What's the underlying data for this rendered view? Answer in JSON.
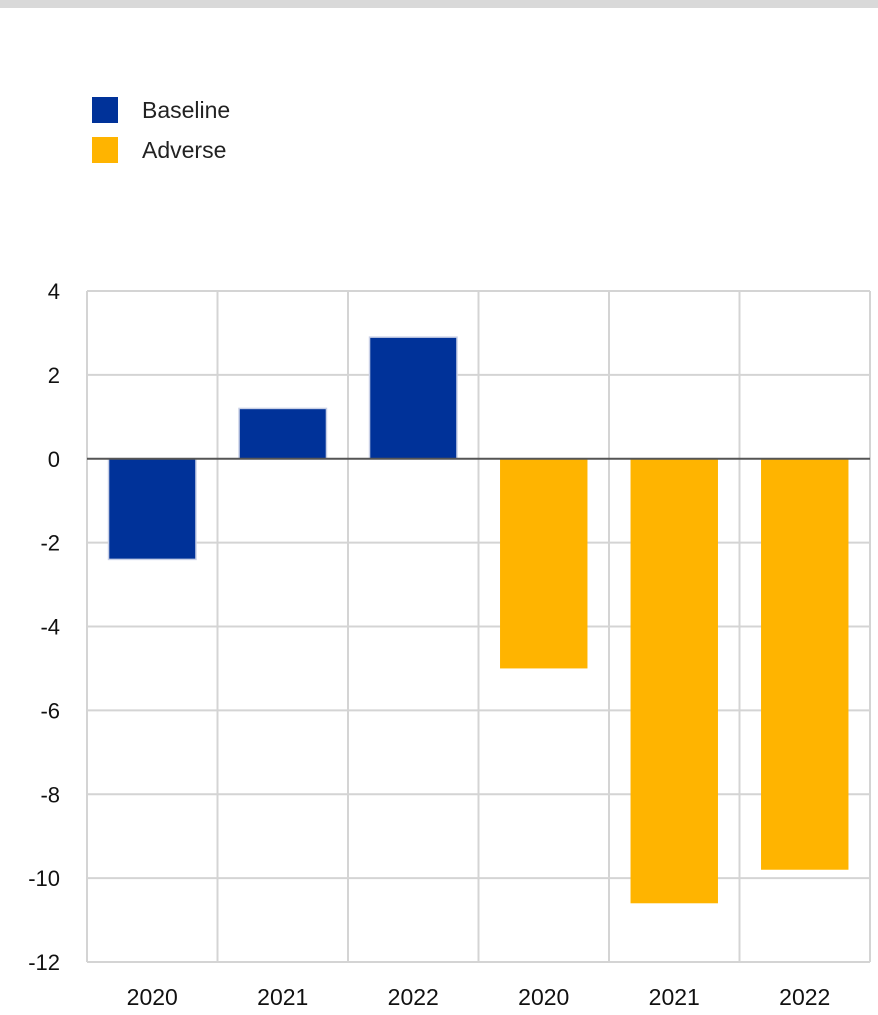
{
  "chart_data": {
    "type": "bar",
    "title": "",
    "xlabel": "",
    "ylabel": "",
    "ylim": [
      -12,
      4
    ],
    "yticks": [
      4,
      2,
      0,
      -2,
      -4,
      -6,
      -8,
      -10,
      -12
    ],
    "grid": true,
    "legend_position": "top-left",
    "categories": [
      "2020",
      "2021",
      "2022",
      "2020",
      "2021",
      "2022"
    ],
    "series": [
      {
        "name": "Baseline",
        "color": "#003299",
        "values": [
          -2.4,
          1.2,
          2.9,
          null,
          null,
          null
        ]
      },
      {
        "name": "Adverse",
        "color": "#FFB400",
        "values": [
          null,
          null,
          null,
          -5.0,
          -10.6,
          -9.8
        ]
      }
    ]
  }
}
